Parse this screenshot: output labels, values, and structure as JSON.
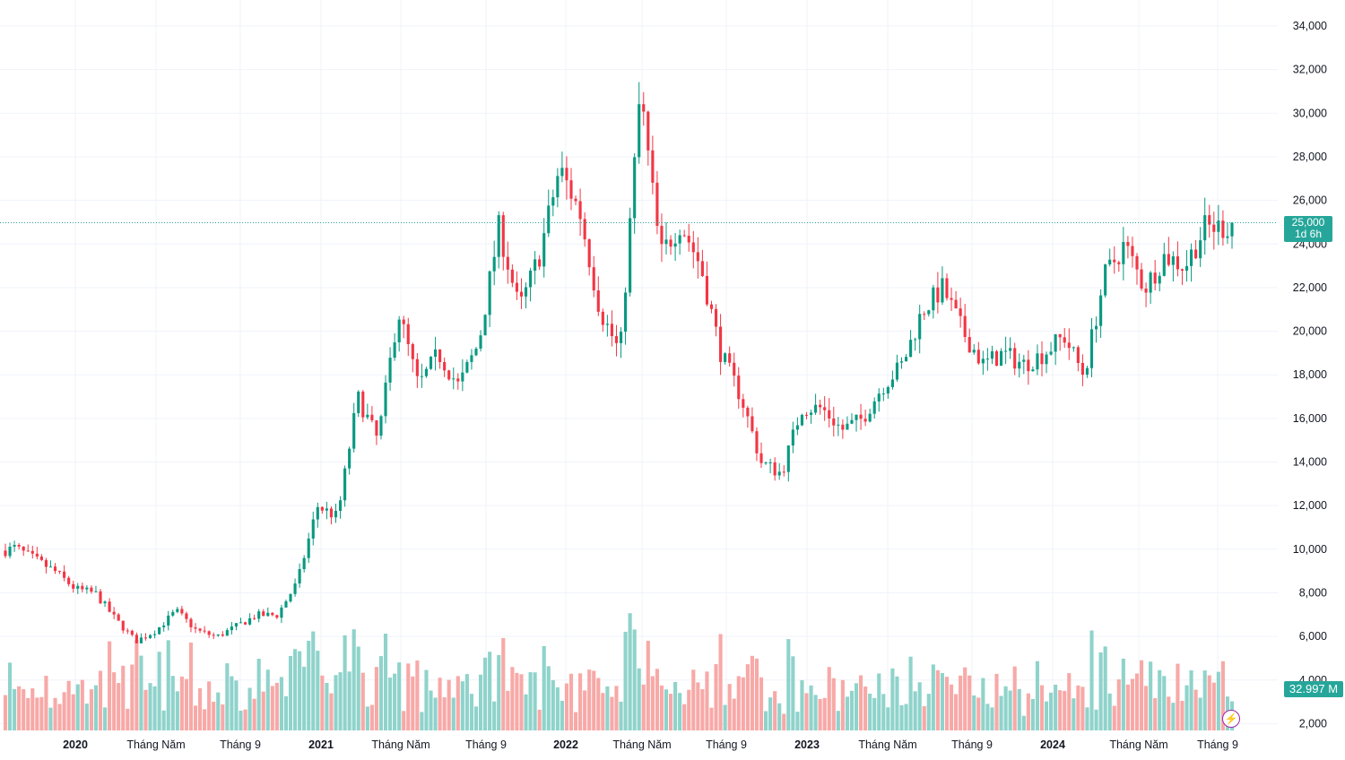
{
  "chart_data": {
    "type": "candlestick",
    "interval": "weekly",
    "y_axis_ticks": [
      "34,000",
      "32,000",
      "30,000",
      "28,000",
      "26,000",
      "24,000",
      "22,000",
      "20,000",
      "18,000",
      "16,000",
      "14,000",
      "12,000",
      "10,000",
      "8,000",
      "6,000",
      "4,000",
      "2,000"
    ],
    "ylim": [
      2000,
      34000
    ],
    "x_axis_ticks": [
      {
        "label": "2020",
        "bold": true
      },
      {
        "label": "Tháng Năm",
        "bold": false
      },
      {
        "label": "Tháng 9",
        "bold": false
      },
      {
        "label": "2021",
        "bold": true
      },
      {
        "label": "Tháng Năm",
        "bold": false
      },
      {
        "label": "Tháng 9",
        "bold": false
      },
      {
        "label": "2022",
        "bold": true
      },
      {
        "label": "Tháng Năm",
        "bold": false
      },
      {
        "label": "Tháng 9",
        "bold": false
      },
      {
        "label": "2023",
        "bold": true
      },
      {
        "label": "Tháng Năm",
        "bold": false
      },
      {
        "label": "Tháng 9",
        "bold": false
      },
      {
        "label": "2024",
        "bold": true
      },
      {
        "label": "Tháng Năm",
        "bold": false
      },
      {
        "label": "Tháng 9",
        "bold": false
      }
    ],
    "price_path": [
      [
        "2019-08",
        9500
      ],
      [
        "2019-10",
        10100
      ],
      [
        "2019-12",
        9000
      ],
      [
        "2020-01",
        8200
      ],
      [
        "2020-02",
        8000
      ],
      [
        "2020-03",
        6800
      ],
      [
        "2020-04",
        5800
      ],
      [
        "2020-05",
        6300
      ],
      [
        "2020-06",
        7200
      ],
      [
        "2020-07",
        6300
      ],
      [
        "2020-08",
        6000
      ],
      [
        "2020-09",
        6500
      ],
      [
        "2020-10",
        7000
      ],
      [
        "2020-11",
        7000
      ],
      [
        "2020-12",
        8500
      ],
      [
        "2021-01",
        12000
      ],
      [
        "2021-02",
        11500
      ],
      [
        "2021-03",
        17000
      ],
      [
        "2021-04",
        15000
      ],
      [
        "2021-05",
        21000
      ],
      [
        "2021-06",
        17500
      ],
      [
        "2021-07",
        19000
      ],
      [
        "2021-08",
        17500
      ],
      [
        "2021-09",
        19500
      ],
      [
        "2021-10",
        24800
      ],
      [
        "2021-11",
        21000
      ],
      [
        "2021-12",
        23500
      ],
      [
        "2022-01",
        27500
      ],
      [
        "2022-02",
        25500
      ],
      [
        "2022-03",
        21000
      ],
      [
        "2022-04",
        19000
      ],
      [
        "2022-05",
        31000
      ],
      [
        "2022-06",
        23500
      ],
      [
        "2022-07",
        25000
      ],
      [
        "2022-08",
        23000
      ],
      [
        "2022-09",
        19000
      ],
      [
        "2022-10",
        17000
      ],
      [
        "2022-11",
        14000
      ],
      [
        "2022-12",
        13500
      ],
      [
        "2023-01",
        16500
      ],
      [
        "2023-02",
        16500
      ],
      [
        "2023-03",
        15500
      ],
      [
        "2023-04",
        16000
      ],
      [
        "2023-05",
        17500
      ],
      [
        "2023-06",
        18500
      ],
      [
        "2023-07",
        21000
      ],
      [
        "2023-08",
        22000
      ],
      [
        "2023-09",
        20000
      ],
      [
        "2023-10",
        18500
      ],
      [
        "2023-11",
        19000
      ],
      [
        "2023-12",
        18500
      ],
      [
        "2024-01",
        19000
      ],
      [
        "2024-02",
        19800
      ],
      [
        "2024-03",
        18000
      ],
      [
        "2024-04",
        22500
      ],
      [
        "2024-05",
        24000
      ],
      [
        "2024-06",
        22000
      ],
      [
        "2024-07",
        23500
      ],
      [
        "2024-08",
        23000
      ],
      [
        "2024-09",
        24800
      ]
    ],
    "last_price": "25,000",
    "countdown": "1d 6h",
    "last_volume": "32.997 M",
    "colors": {
      "up": "#089981",
      "down": "#f23645",
      "vol_up": "#8fd3cb",
      "vol_down": "#f7a9a7",
      "grid": "#f0f3fa",
      "axis_text": "#131722",
      "price_line": "#26a69a"
    }
  },
  "icons": {
    "flash": "lightning-icon"
  }
}
